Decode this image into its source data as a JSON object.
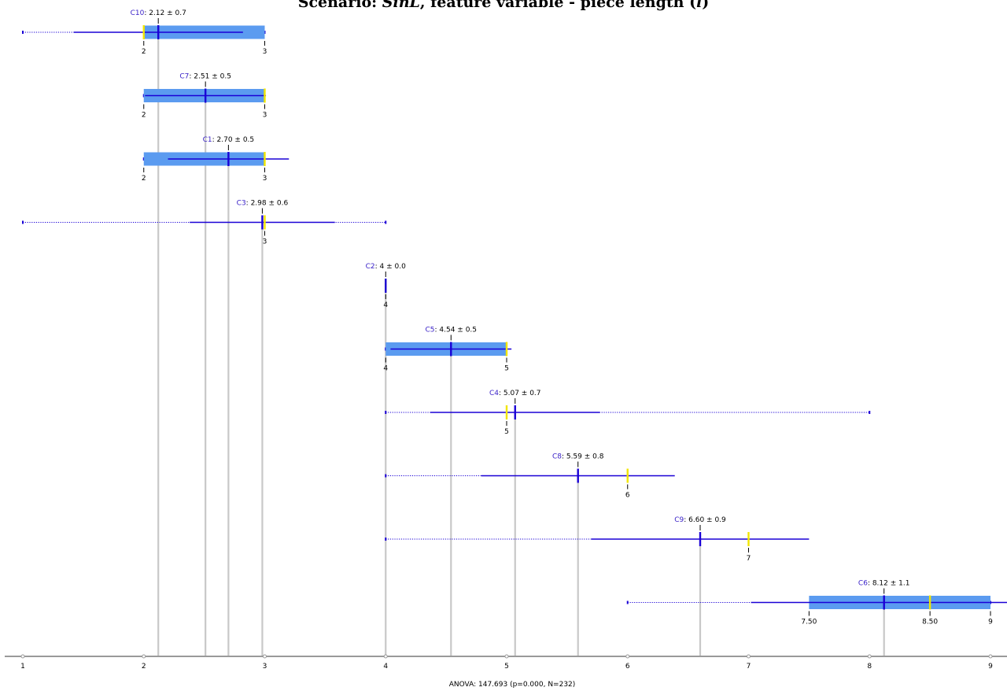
{
  "title": {
    "prefix": "Scenario: ",
    "scenario": "SinL",
    "middle": ", feature variable - piece length (",
    "variable": "l",
    "suffix": ")"
  },
  "colors": {
    "box": "#5b9bf0",
    "mean": "#1a00d6",
    "median": "#f2e600",
    "guide": "#c8c8c8",
    "axis": "#9a9a9a",
    "name": "#3a22c8"
  },
  "chart_data": {
    "type": "box",
    "xlim": [
      1,
      9
    ],
    "x_ticks": [
      "1",
      "2",
      "3",
      "4",
      "5",
      "6",
      "7",
      "8",
      "9"
    ],
    "footer": "ANOVA: 147.693 (p=0.000, N=232)",
    "groups": [
      {
        "name": "C10",
        "stat": "2.12 ± 0.7",
        "mean": 2.12,
        "sd": 0.7,
        "min": 1,
        "max": 3,
        "q1": 2,
        "q3": 3,
        "median": 2,
        "box": true,
        "quantile_labels": [
          "2",
          "3"
        ]
      },
      {
        "name": "C7",
        "stat": "2.51 ± 0.5",
        "mean": 2.51,
        "sd": 0.5,
        "min": 2,
        "max": 3,
        "q1": 2,
        "q3": 3,
        "median": 3,
        "box": true,
        "quantile_labels": [
          "2",
          "3"
        ]
      },
      {
        "name": "C1",
        "stat": "2.70 ± 0.5",
        "mean": 2.7,
        "sd": 0.5,
        "min": 2,
        "max": 3,
        "q1": 2,
        "q3": 3,
        "median": 3,
        "box": true,
        "quantile_labels": [
          "2",
          "3"
        ]
      },
      {
        "name": "C3",
        "stat": "2.98 ± 0.6",
        "mean": 2.98,
        "sd": 0.6,
        "min": 1,
        "max": 4,
        "q1": 3,
        "q3": 3,
        "median": 3,
        "box": false,
        "quantile_labels": [
          "3"
        ]
      },
      {
        "name": "C2",
        "stat": "4 ± 0.0",
        "mean": 4,
        "sd": 0.0,
        "min": 4,
        "max": 4,
        "q1": 4,
        "q3": 4,
        "median": 4,
        "box": false,
        "quantile_labels": [
          "4"
        ]
      },
      {
        "name": "C5",
        "stat": "4.54 ± 0.5",
        "mean": 4.54,
        "sd": 0.5,
        "min": 4,
        "max": 5,
        "q1": 4,
        "q3": 5,
        "median": 5,
        "box": true,
        "quantile_labels": [
          "4",
          "5"
        ]
      },
      {
        "name": "C4",
        "stat": "5.07 ± 0.7",
        "mean": 5.07,
        "sd": 0.7,
        "min": 4,
        "max": 8,
        "q1": 5,
        "q3": 5,
        "median": 5,
        "box": false,
        "quantile_labels": [
          "5"
        ]
      },
      {
        "name": "C8",
        "stat": "5.59 ± 0.8",
        "mean": 5.59,
        "sd": 0.8,
        "min": 4,
        "max": 6,
        "q1": 6,
        "q3": 6,
        "median": 6,
        "box": false,
        "quantile_labels": [
          "6"
        ]
      },
      {
        "name": "C9",
        "stat": "6.60 ± 0.9",
        "mean": 6.6,
        "sd": 0.9,
        "min": 4,
        "max": 7,
        "q1": 7,
        "q3": 7,
        "median": 7,
        "box": false,
        "quantile_labels": [
          "7"
        ]
      },
      {
        "name": "C6",
        "stat": "8.12 ± 1.1",
        "mean": 8.12,
        "sd": 1.1,
        "min": 6,
        "max": 9,
        "q1": 7.5,
        "q3": 9,
        "median": 8.5,
        "box": true,
        "quantile_labels": [
          "7.50",
          "8.50",
          "9"
        ]
      }
    ]
  }
}
